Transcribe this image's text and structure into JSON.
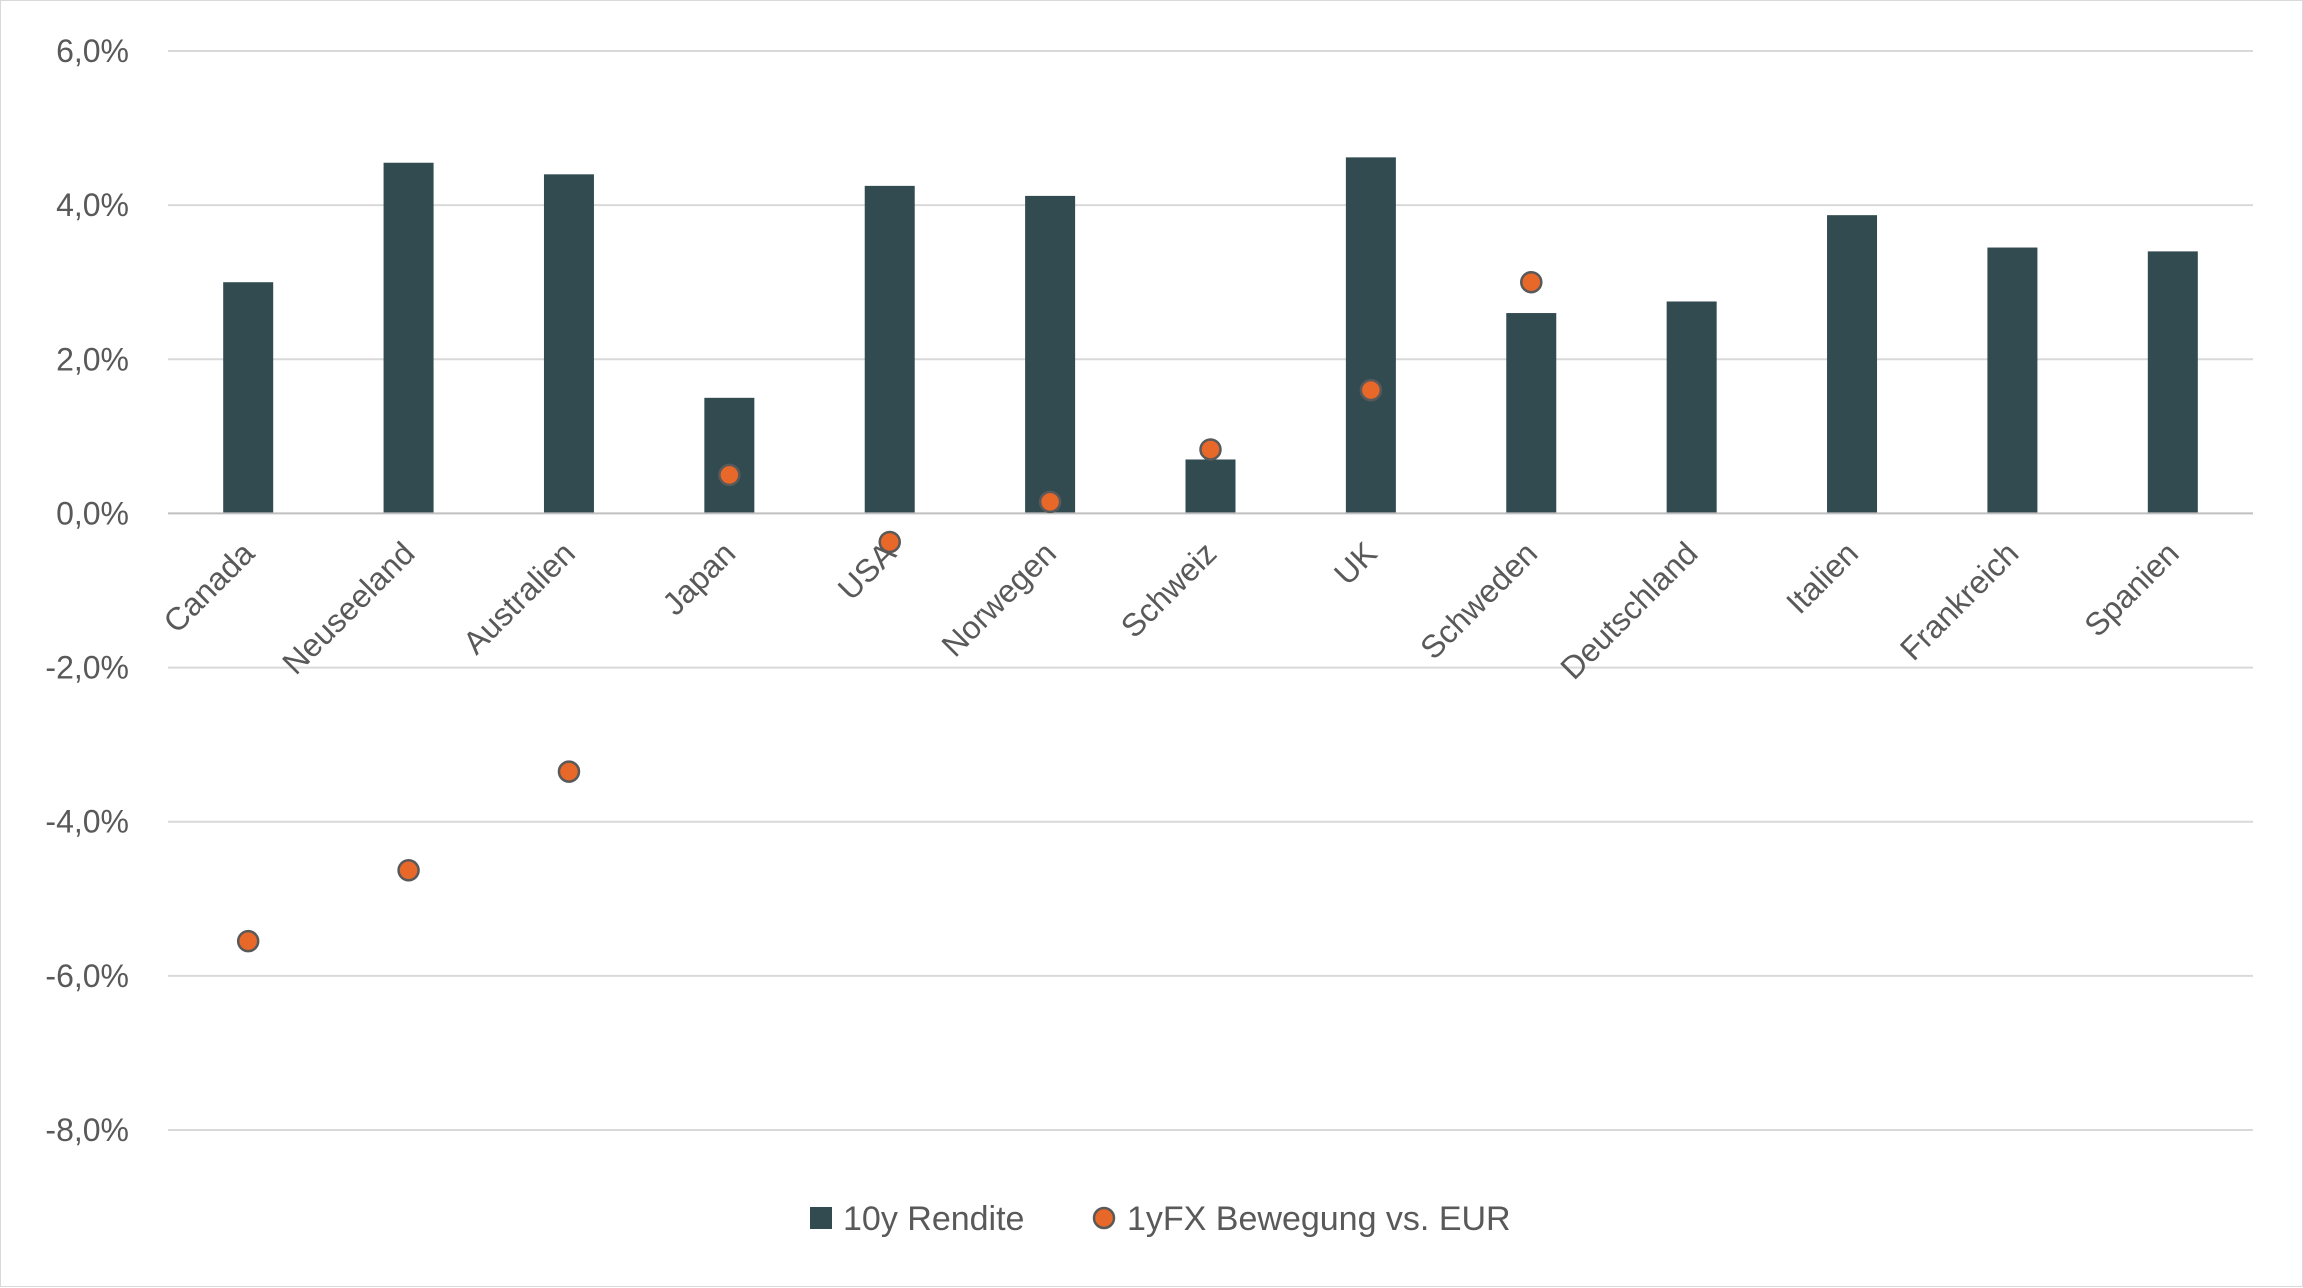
{
  "chart_data": {
    "type": "bar",
    "categories": [
      "Canada",
      "Neuseeland",
      "Australien",
      "Japan",
      "USA",
      "Norwegen",
      "Schweiz",
      "UK",
      "Schweden",
      "Deutschland",
      "Italien",
      "Frankreich",
      "Spanien"
    ],
    "series": [
      {
        "name": "10y Rendite",
        "type": "bar",
        "color": "#324b51",
        "values": [
          3.0,
          4.55,
          4.4,
          1.5,
          4.25,
          4.12,
          0.7,
          4.62,
          2.6,
          2.75,
          3.87,
          3.45,
          3.4
        ]
      },
      {
        "name": "1yFX Bewegung vs. EUR",
        "type": "scatter",
        "color": "#e8682a",
        "values": [
          -5.55,
          -4.63,
          -3.35,
          0.5,
          -0.37,
          0.15,
          0.83,
          1.6,
          3.0,
          null,
          null,
          null,
          null
        ]
      }
    ],
    "ylim": [
      -8,
      6
    ],
    "yticks": [
      6,
      4,
      2,
      0,
      -2,
      -4,
      -6,
      -8
    ],
    "ytick_labels": [
      "6,0%",
      "4,0%",
      "2,0%",
      "0,0%",
      "-2,0%",
      "-4,0%",
      "-6,0%",
      "-8,0%"
    ],
    "grid": true,
    "legend_position": "bottom",
    "gridline_color": "#d9d9d9",
    "axis_color": "#bfbfbf"
  }
}
